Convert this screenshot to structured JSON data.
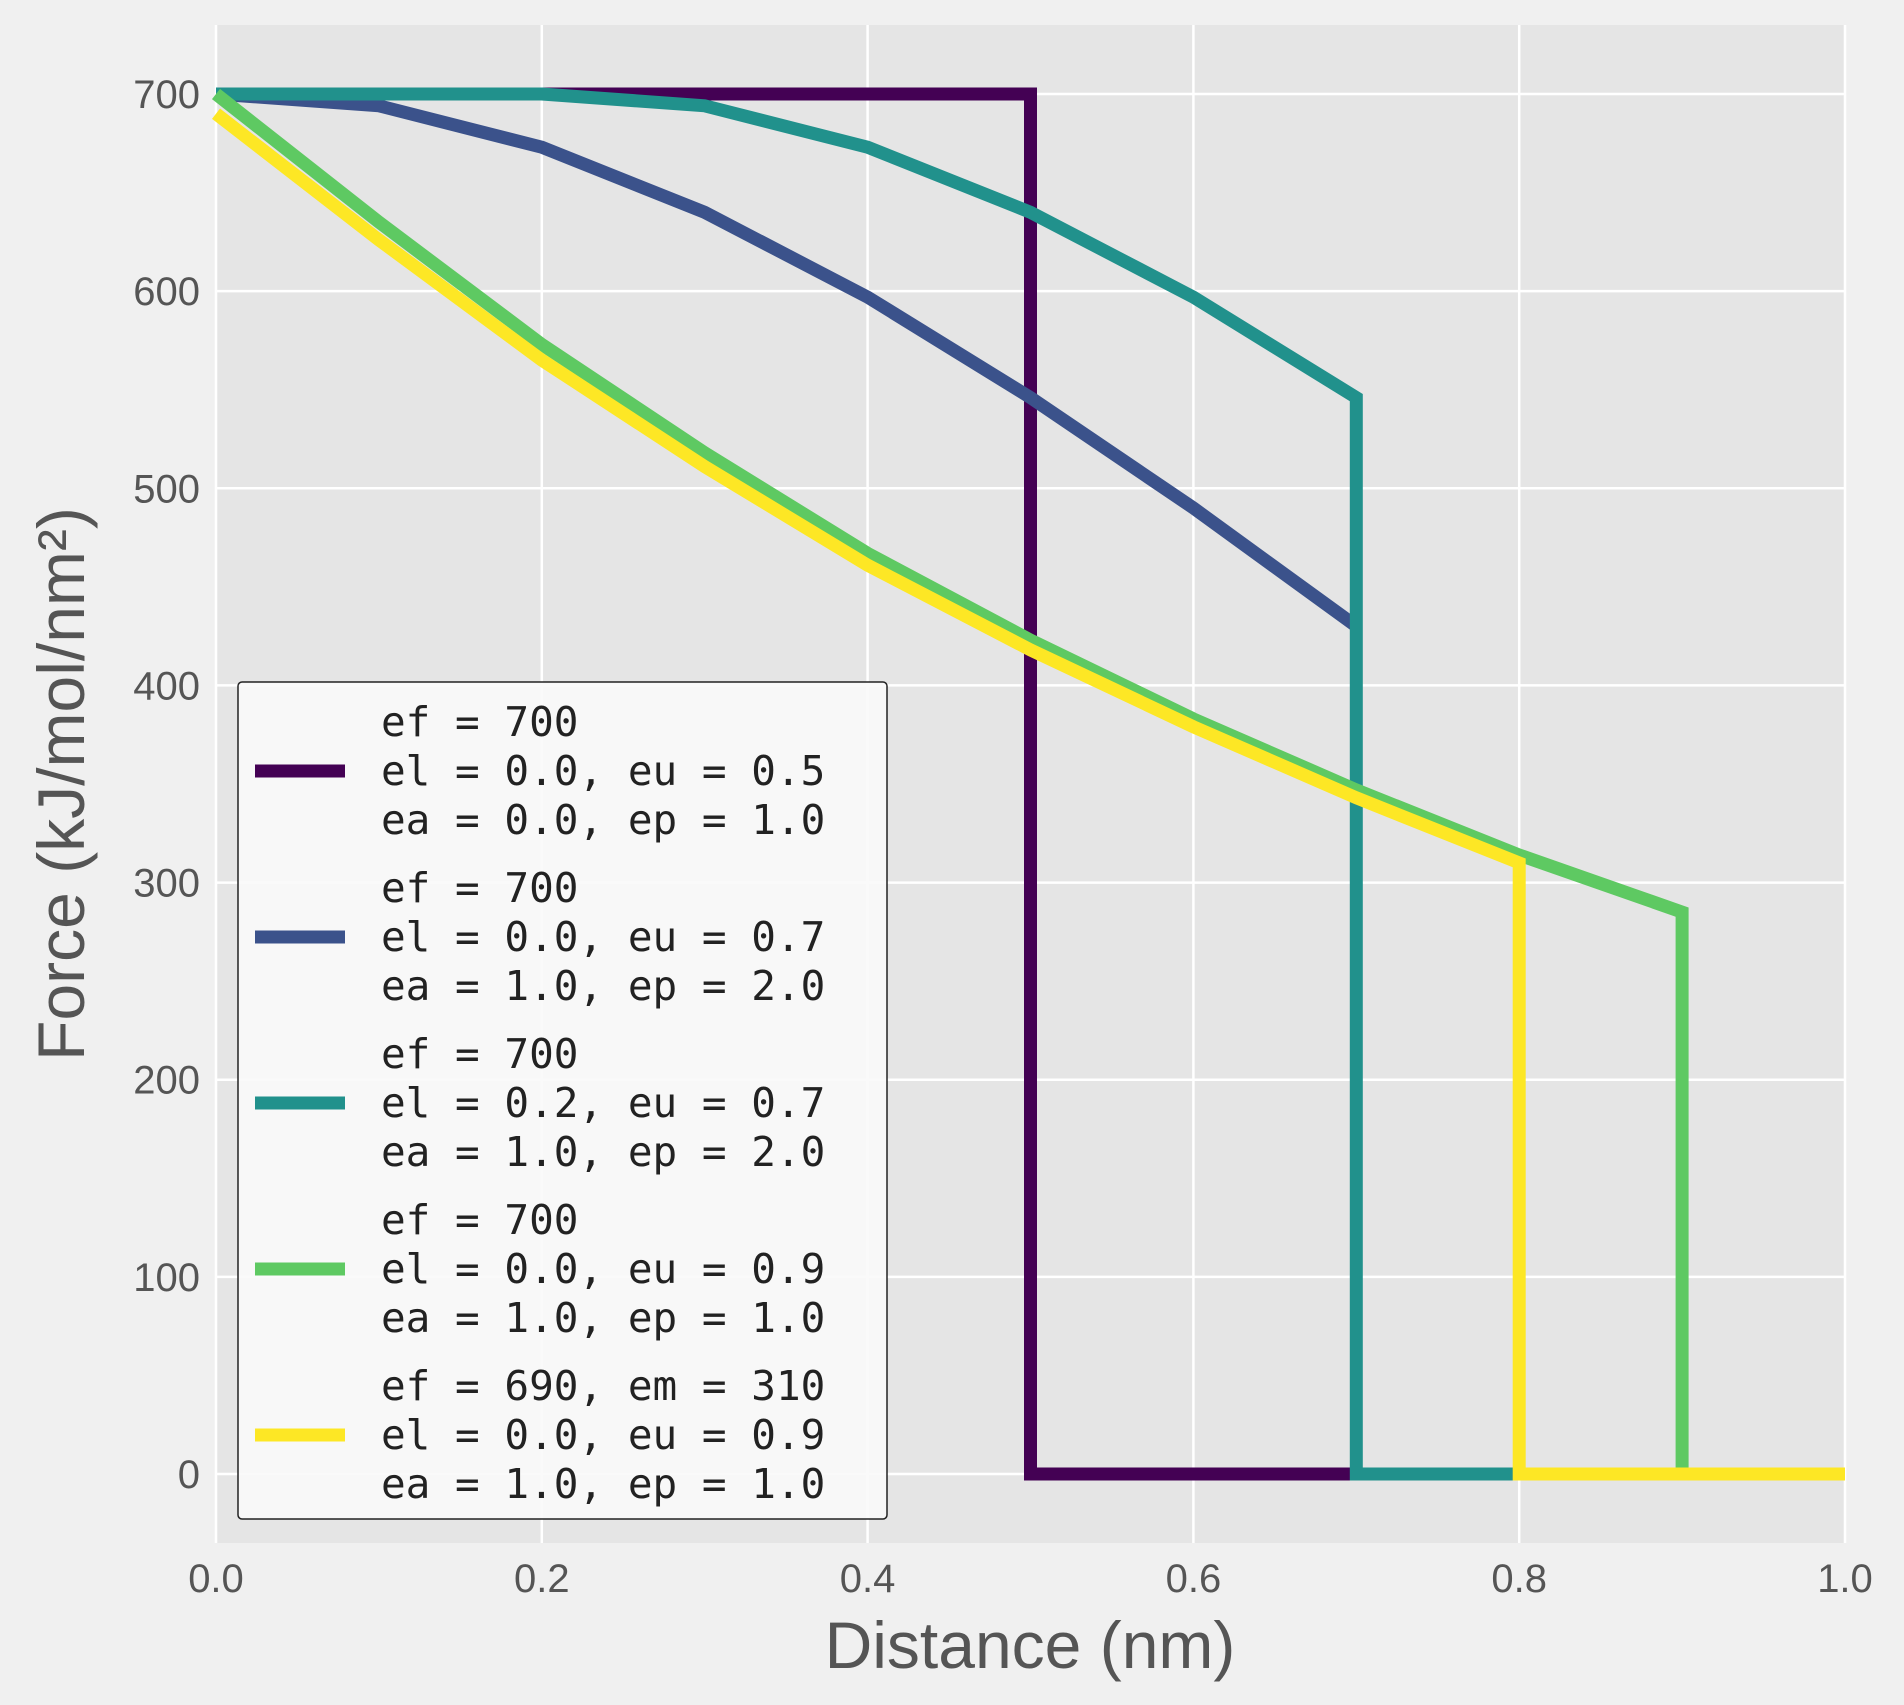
{
  "chart_data": {
    "type": "line",
    "title": "",
    "xlabel": "Distance (nm)",
    "ylabel": "Force (kJ/mol/nm²)",
    "xlim": [
      0.0,
      1.0
    ],
    "ylim": [
      -35,
      735
    ],
    "xticks": [
      0.0,
      0.2,
      0.4,
      0.6,
      0.8,
      1.0
    ],
    "xtick_labels": [
      "0.0",
      "0.2",
      "0.4",
      "0.6",
      "0.8",
      "1.0"
    ],
    "yticks": [
      0,
      100,
      200,
      300,
      400,
      500,
      600,
      700
    ],
    "ytick_labels": [
      "0",
      "100",
      "200",
      "300",
      "400",
      "500",
      "600",
      "700"
    ],
    "grid": true,
    "legend_position": "lower-left",
    "series": [
      {
        "legend": [
          "ef = 700",
          "el = 0.0, eu = 0.5",
          "ea = 0.0, ep = 1.0"
        ],
        "color": "#440154",
        "x": [
          0.0,
          0.5,
          0.5,
          1.0
        ],
        "y": [
          700,
          700,
          0,
          0
        ]
      },
      {
        "legend": [
          "ef = 700",
          "el = 0.0, eu = 0.7",
          "ea = 1.0, ep = 2.0"
        ],
        "color": "#3b528b",
        "x": [
          0.0,
          0.1,
          0.2,
          0.3,
          0.4,
          0.5,
          0.6,
          0.7
        ],
        "y": [
          700,
          694,
          673,
          640,
          597,
          546,
          490,
          430
        ]
      },
      {
        "legend": [
          "ef = 700",
          "el = 0.2, eu = 0.7",
          "ea = 1.0, ep = 2.0"
        ],
        "color": "#21918c",
        "x": [
          0.0,
          0.2,
          0.3,
          0.4,
          0.5,
          0.6,
          0.7,
          0.7,
          1.0
        ],
        "y": [
          700,
          700,
          694,
          673,
          640,
          597,
          546,
          0,
          0
        ]
      },
      {
        "legend": [
          "ef = 700",
          "el = 0.0, eu = 0.9",
          "ea = 1.0, ep = 1.0"
        ],
        "color": "#5ec962",
        "x": [
          0.0,
          0.1,
          0.2,
          0.3,
          0.4,
          0.5,
          0.6,
          0.7,
          0.8,
          0.9,
          0.9,
          1.0
        ],
        "y": [
          700,
          635,
          573,
          518,
          467,
          423,
          383,
          347,
          314,
          285,
          0,
          0
        ]
      },
      {
        "legend": [
          "ef = 690, em = 310",
          "el = 0.0, eu = 0.9",
          "ea = 1.0, ep = 1.0"
        ],
        "color": "#fde725",
        "x": [
          0.0,
          0.1,
          0.2,
          0.3,
          0.4,
          0.5,
          0.6,
          0.7,
          0.8,
          0.8,
          1.0
        ],
        "y": [
          690,
          626,
          565,
          511,
          461,
          418,
          379,
          343,
          310,
          0,
          0
        ]
      }
    ]
  }
}
